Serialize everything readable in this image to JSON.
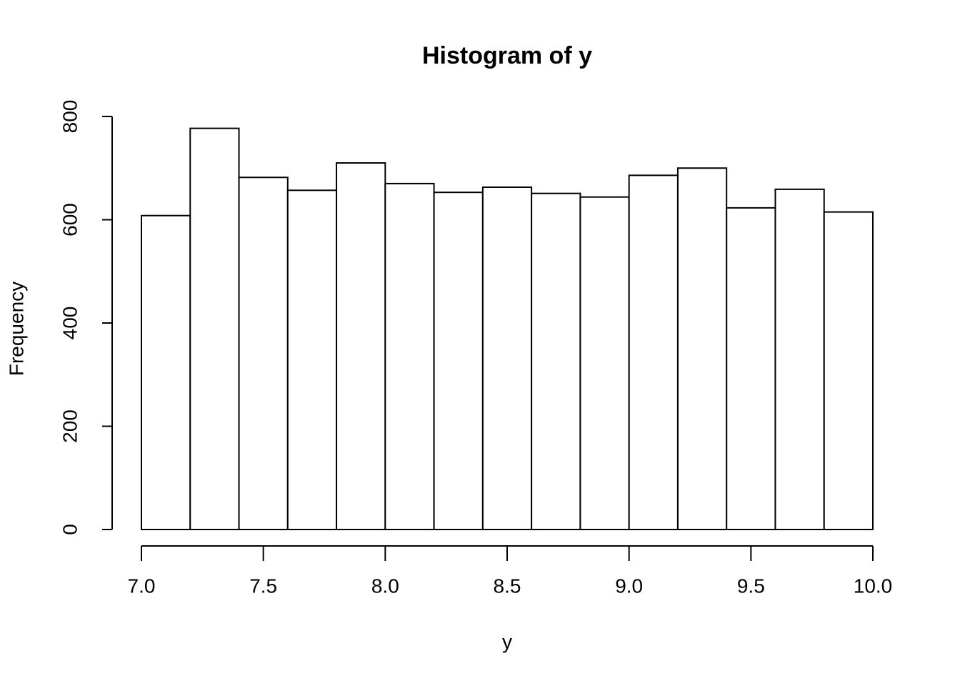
{
  "chart_data": {
    "type": "histogram",
    "title": "Histogram of y",
    "x_label": "y",
    "y_label": "Frequency",
    "bins": [
      7.0,
      7.2,
      7.4,
      7.6,
      7.8,
      8.0,
      8.2,
      8.4,
      8.6,
      8.8,
      9.0,
      9.2,
      9.4,
      9.6,
      9.8,
      10.0
    ],
    "values": [
      608,
      777,
      682,
      657,
      710,
      670,
      653,
      663,
      651,
      644,
      686,
      700,
      623,
      659,
      615
    ],
    "color": "#ffffff",
    "xlim": [
      7,
      10
    ],
    "xticks": [
      {
        "value": 7,
        "label": "7.0"
      },
      7.5,
      {
        "value": 8,
        "label": "8.0"
      },
      8.5,
      {
        "value": 9,
        "label": "9.0"
      },
      9.5,
      {
        "value": 10,
        "label": "10.0"
      }
    ],
    "ylim": [
      0,
      800
    ],
    "yticks": [
      0,
      200,
      400,
      600,
      800
    ],
    "grid": false
  }
}
